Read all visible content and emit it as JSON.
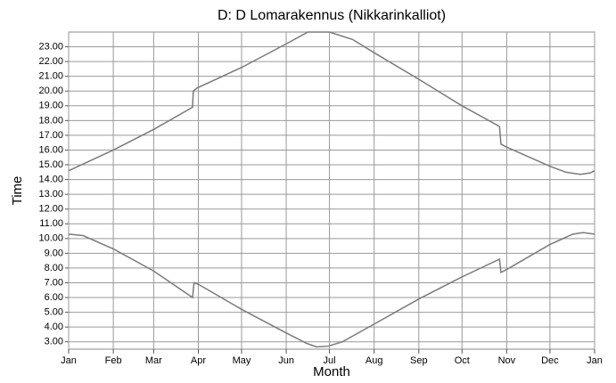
{
  "chart_data": {
    "type": "line",
    "title": "D: D Lomarakennus (Nikkarinkalliot)",
    "x_label": "Month",
    "y_label": "Time",
    "grid": true,
    "xlim": [
      0,
      365
    ],
    "ylim": [
      2.5,
      24
    ],
    "xticks": [
      {
        "value": 0,
        "label": "Jan"
      },
      {
        "value": 31,
        "label": "Feb"
      },
      {
        "value": 59,
        "label": "Mar"
      },
      {
        "value": 90,
        "label": "Apr"
      },
      {
        "value": 120,
        "label": "May"
      },
      {
        "value": 151,
        "label": "Jun"
      },
      {
        "value": 181,
        "label": "Jul"
      },
      {
        "value": 212,
        "label": "Aug"
      },
      {
        "value": 243,
        "label": "Sep"
      },
      {
        "value": 273,
        "label": "Oct"
      },
      {
        "value": 304,
        "label": "Nov"
      },
      {
        "value": 334,
        "label": "Dec"
      },
      {
        "value": 365,
        "label": "Jan"
      }
    ],
    "yticks": [
      {
        "value": 3,
        "label": "3.00"
      },
      {
        "value": 4,
        "label": "4.00"
      },
      {
        "value": 5,
        "label": "5.00"
      },
      {
        "value": 6,
        "label": "6.00"
      },
      {
        "value": 7,
        "label": "7.00"
      },
      {
        "value": 8,
        "label": "8.00"
      },
      {
        "value": 9,
        "label": "9.00"
      },
      {
        "value": 10,
        "label": "10.00"
      },
      {
        "value": 11,
        "label": "11.00"
      },
      {
        "value": 12,
        "label": "12.00"
      },
      {
        "value": 13,
        "label": "13.00"
      },
      {
        "value": 14,
        "label": "14.00"
      },
      {
        "value": 15,
        "label": "15.00"
      },
      {
        "value": 16,
        "label": "16.00"
      },
      {
        "value": 17,
        "label": "17.00"
      },
      {
        "value": 18,
        "label": "18.00"
      },
      {
        "value": 19,
        "label": "19.00"
      },
      {
        "value": 20,
        "label": "20.00"
      },
      {
        "value": 21,
        "label": "21.00"
      },
      {
        "value": 22,
        "label": "22.00"
      },
      {
        "value": 23,
        "label": "23.00"
      }
    ],
    "series": [
      {
        "color": "#7a7a7a",
        "x": [
          0,
          31,
          59,
          86,
          86.5,
          89,
          120,
          151,
          166,
          181,
          197,
          212,
          243,
          273,
          299,
          300,
          304,
          334,
          345,
          355,
          362,
          365
        ],
        "values": [
          14.6,
          16.0,
          17.4,
          18.9,
          20.0,
          20.2,
          21.6,
          23.2,
          24.0,
          24.0,
          23.5,
          22.6,
          20.8,
          19.0,
          17.6,
          16.4,
          16.2,
          14.9,
          14.5,
          14.35,
          14.45,
          14.6
        ]
      },
      {
        "color": "#7a7a7a",
        "x": [
          0,
          10,
          31,
          59,
          86,
          87,
          90,
          120,
          151,
          165,
          172,
          180,
          190,
          212,
          243,
          273,
          299,
          300,
          304,
          334,
          350,
          357,
          365
        ],
        "values": [
          10.3,
          10.2,
          9.3,
          7.8,
          6.0,
          7.0,
          6.9,
          5.2,
          3.6,
          2.9,
          2.65,
          2.7,
          3.0,
          4.2,
          5.9,
          7.4,
          8.6,
          7.7,
          7.9,
          9.6,
          10.3,
          10.4,
          10.3
        ]
      }
    ]
  }
}
